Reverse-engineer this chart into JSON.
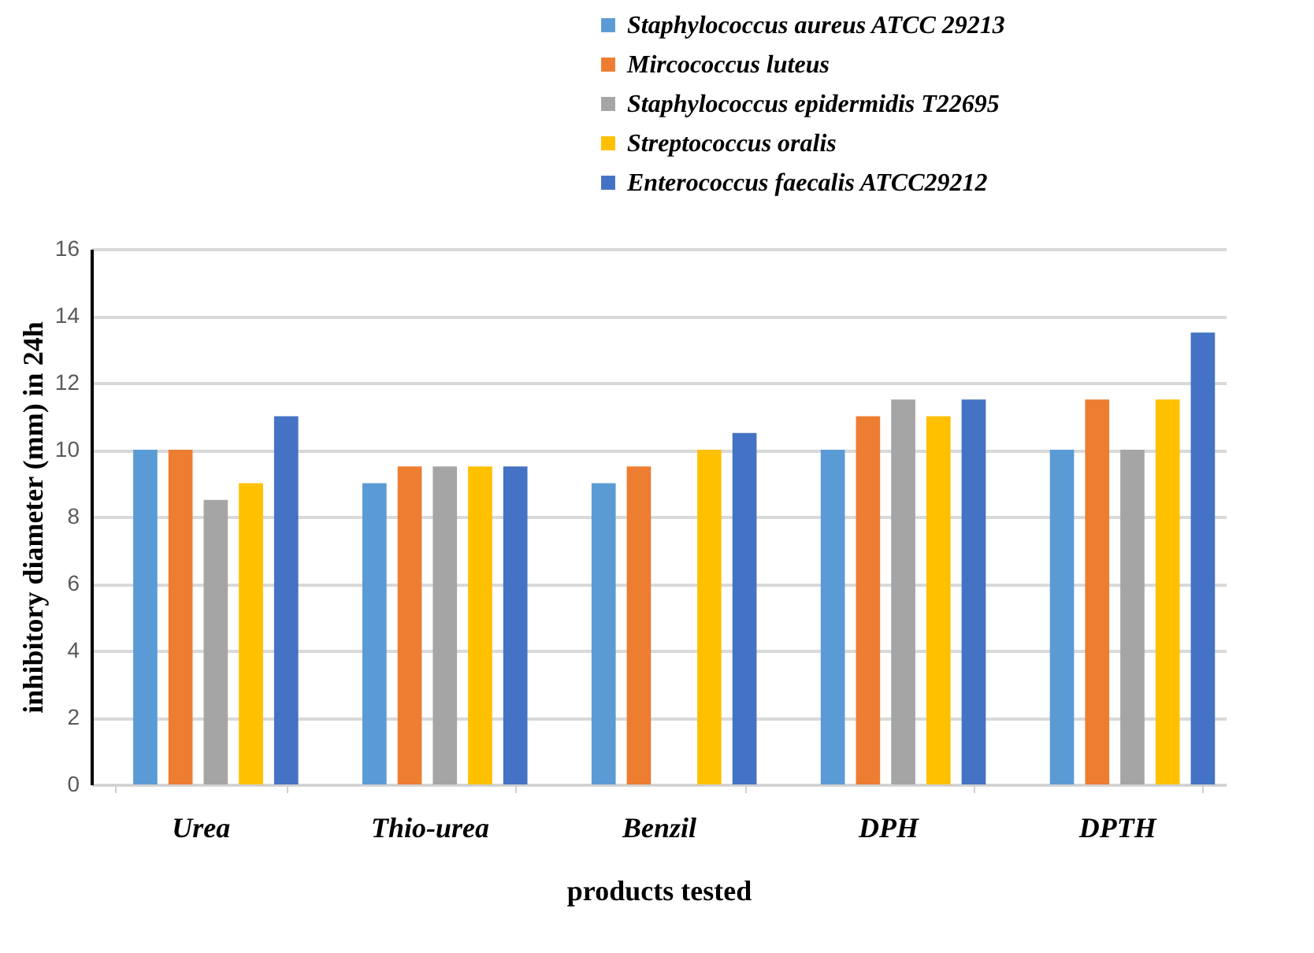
{
  "chart_data": {
    "type": "bar",
    "xlabel": "products tested",
    "ylabel": "inhibitory diameter (mm) in 24h",
    "categories": [
      "Urea",
      "Thio-urea",
      "Benzil",
      "DPH",
      "DPTH"
    ],
    "series": [
      {
        "name": "Staphylococcus aureus ATCC 29213",
        "color": "#5b9bd5",
        "values": [
          10,
          9,
          9,
          10,
          10
        ]
      },
      {
        "name": "Mircococcus luteus",
        "color": "#ed7d31",
        "values": [
          10,
          9.5,
          9.5,
          11,
          11.5
        ]
      },
      {
        "name": "Staphylococcus epidermidis T22695",
        "color": "#a5a5a5",
        "values": [
          8.5,
          9.5,
          null,
          11.5,
          10
        ]
      },
      {
        "name": "Streptococcus oralis",
        "color": "#ffc000",
        "values": [
          9,
          9.5,
          10,
          11,
          11.5
        ]
      },
      {
        "name": "Enterococcus faecalis ATCC29212",
        "color": "#4472c4",
        "values": [
          11,
          9.5,
          10.5,
          11.5,
          13.5
        ]
      }
    ],
    "ylim": [
      0,
      16
    ],
    "yticks": [
      0,
      2,
      4,
      6,
      8,
      10,
      12,
      14,
      16
    ],
    "grid": "y",
    "legend": "top right"
  }
}
